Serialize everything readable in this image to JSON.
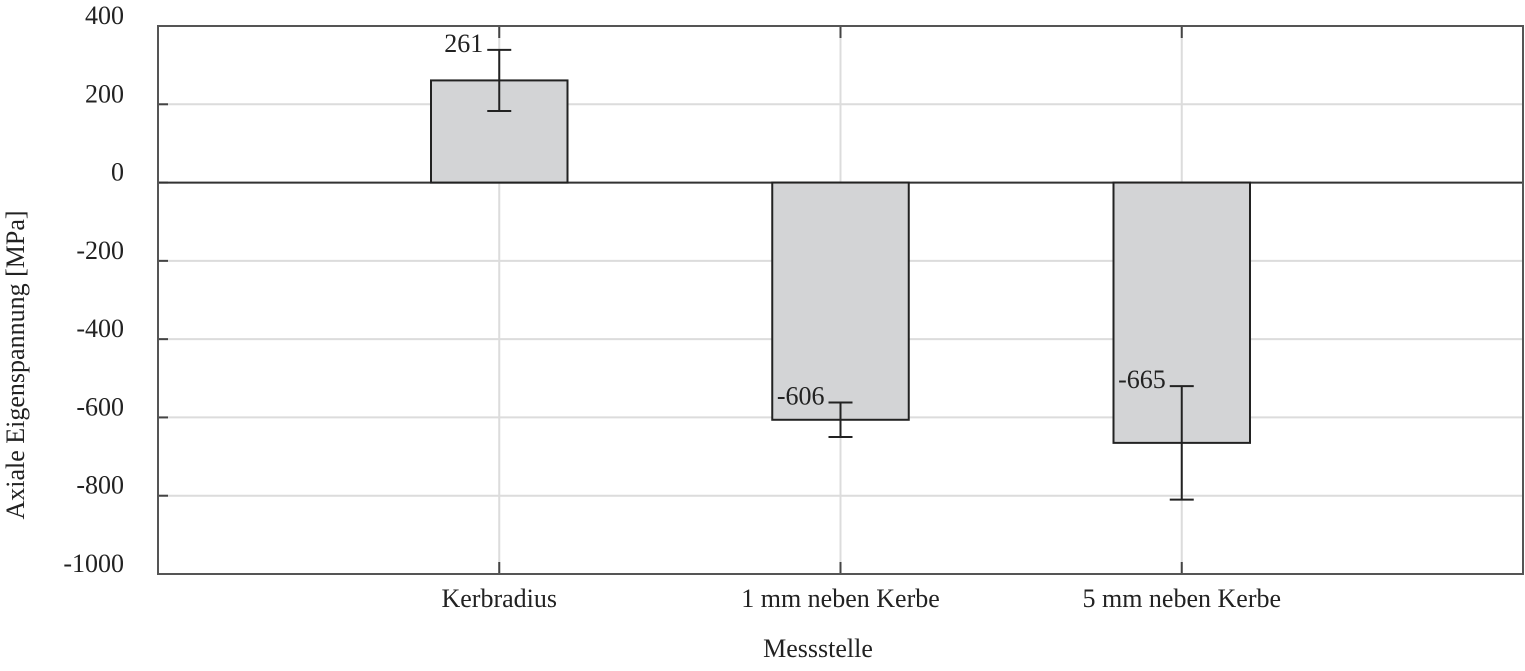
{
  "chart_data": {
    "type": "bar",
    "x_label": "Messstelle",
    "y_label": "Axiale Eigenspannung [MPa]",
    "categories": [
      "Kerbradius",
      "1 mm neben Kerbe",
      "5 mm neben Kerbe"
    ],
    "values": [
      261,
      -606,
      -665
    ],
    "errors": [
      78,
      44,
      145
    ],
    "color": "#d3d4d6",
    "ylim": [
      -1000,
      400
    ],
    "yticks": [
      -1000,
      -800,
      -600,
      -400,
      -200,
      0,
      200,
      400
    ],
    "grid": true
  }
}
